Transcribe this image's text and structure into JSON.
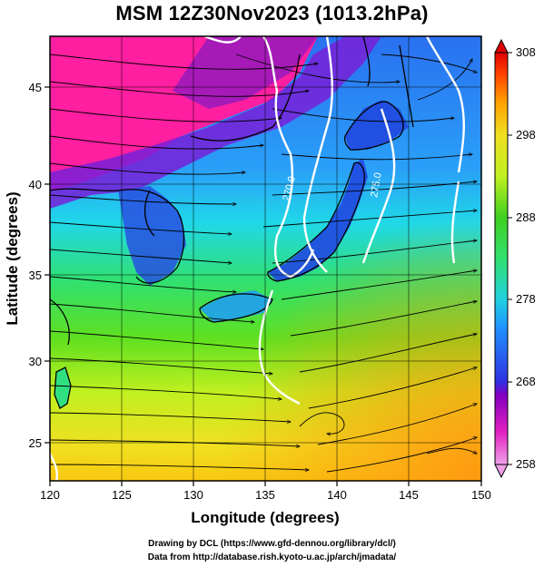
{
  "title": "MSM 12Z30Nov2023 (1013.2hPa)",
  "xaxis": {
    "label": "Longitude (degrees)",
    "range": [
      120,
      150
    ],
    "ticks": [
      120,
      125,
      130,
      135,
      140,
      145,
      150
    ]
  },
  "yaxis": {
    "label": "Latitude  (degrees)",
    "range": [
      22.4,
      47.6
    ],
    "ticks": [
      25,
      30,
      35,
      40,
      45
    ]
  },
  "colorbar": {
    "range": [
      258,
      308
    ],
    "ticks": [
      258,
      268,
      278,
      288,
      298,
      308
    ],
    "colors": [
      "#f0a0e8",
      "#e020c0",
      "#8000c0",
      "#3030e0",
      "#2090ff",
      "#20d0e0",
      "#30e070",
      "#40d020",
      "#c0f020",
      "#f0e020",
      "#ffa000",
      "#ff4000",
      "#e00000"
    ]
  },
  "contour_labels": [
    "270.0",
    "275.0"
  ],
  "credits": {
    "line1": "Drawing by DCL (https://www.gfd-dennou.org/library/dcl/)",
    "line2": "Data from http://database.rish.kyoto-u.ac.jp/arch/jmadata/"
  },
  "colors": {
    "land_cold": "#ff1fa0",
    "sea_warm": "#f0d020"
  }
}
